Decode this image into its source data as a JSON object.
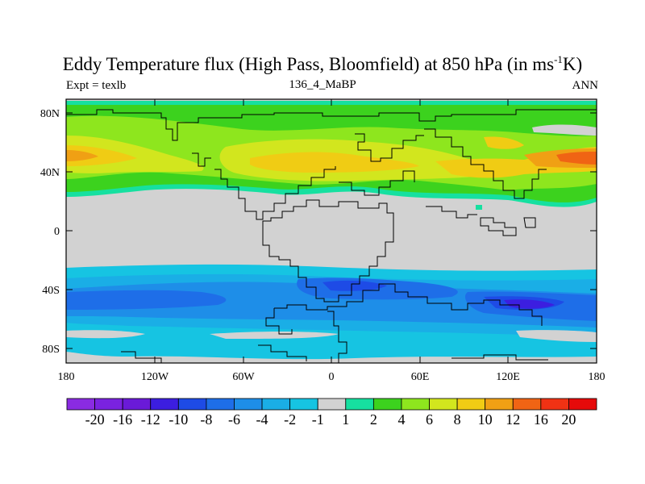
{
  "header": {
    "title_main": "Eddy Temperature flux (High Pass, Bloomfield) at 850 hPa (in ms",
    "title_sup": "-1",
    "title_end": "K)",
    "left": "Expt = texlb",
    "center": "136_4_MaBP",
    "right": "ANN"
  },
  "map": {
    "y_ticks": [
      "80N",
      "40N",
      "0",
      "40S",
      "80S"
    ],
    "x_ticks": [
      "180",
      "120W",
      "60W",
      "0",
      "60E",
      "120E",
      "180"
    ]
  },
  "colorbar": {
    "labels": [
      "-20",
      "-16",
      "-12",
      "-10",
      "-8",
      "-6",
      "-4",
      "-2",
      "-1",
      "1",
      "2",
      "4",
      "6",
      "8",
      "10",
      "12",
      "16",
      "20"
    ],
    "colors": [
      "#8a2be2",
      "#7a22e0",
      "#6a1ad8",
      "#3c1ee0",
      "#1e4be6",
      "#1e6ee8",
      "#1e8ee8",
      "#1aaee6",
      "#16c4e2",
      "#d2d2d2",
      "#16e0a0",
      "#3cd21e",
      "#8ee61e",
      "#d2e61e",
      "#f0cc14",
      "#f0a014",
      "#f06414",
      "#f03214",
      "#e60a0a"
    ]
  }
}
